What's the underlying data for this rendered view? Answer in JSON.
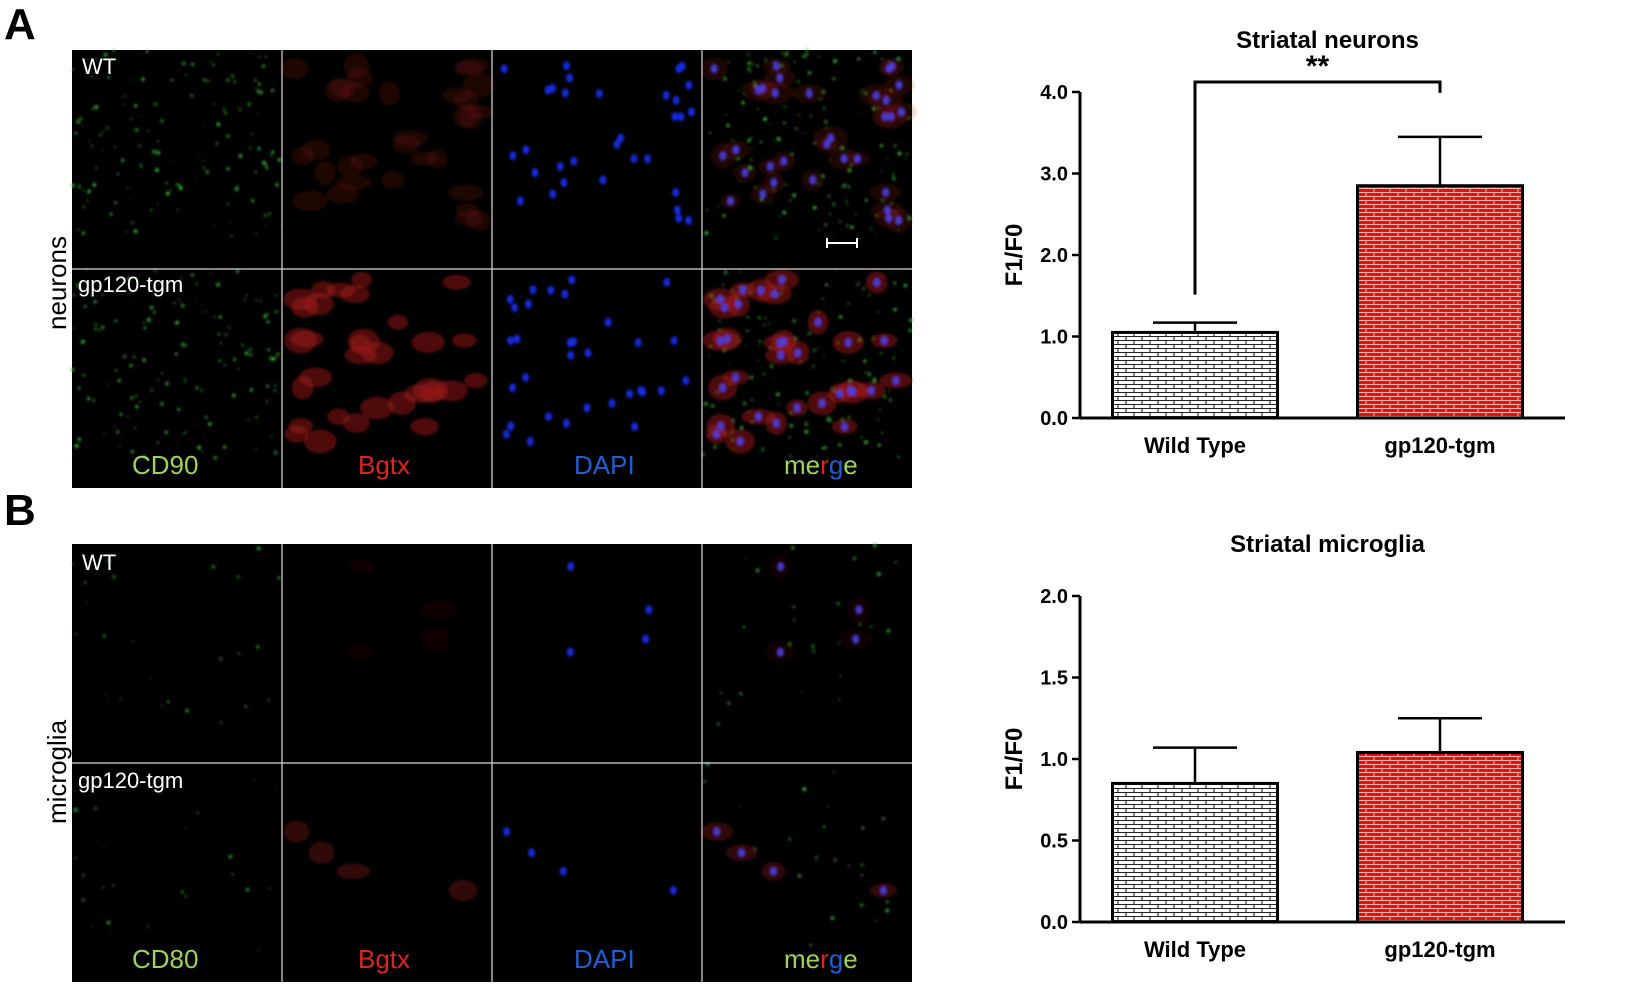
{
  "panels": [
    {
      "letter": "A",
      "row_label": "neurons",
      "row_names": [
        "WT",
        "gp120-tgm"
      ],
      "channels": [
        {
          "name": "CD90",
          "color": "#9bd45a"
        },
        {
          "name": "Bgtx",
          "color": "#e0241b"
        },
        {
          "name": "DAPI",
          "color": "#1f5fd6"
        },
        {
          "name": "merge",
          "color": "merge"
        }
      ]
    },
    {
      "letter": "B",
      "row_label": "microglia",
      "row_names": [
        "WT",
        "gp120-tgm"
      ],
      "channels": [
        {
          "name": "CD80",
          "color": "#9bd45a"
        },
        {
          "name": "Bgtx",
          "color": "#e0241b"
        },
        {
          "name": "DAPI",
          "color": "#1f5fd6"
        },
        {
          "name": "merge",
          "color": "merge"
        }
      ]
    }
  ],
  "merge_letters": [
    {
      "ch": "m",
      "color": "#9bd45a"
    },
    {
      "ch": "e",
      "color": "#9bd45a"
    },
    {
      "ch": "r",
      "color": "#e0241b"
    },
    {
      "ch": "g",
      "color": "#1f5fd6"
    },
    {
      "ch": "e",
      "color": "#9bd45a"
    }
  ],
  "chart_data": [
    {
      "type": "bar",
      "title": "Striatal neurons",
      "categories": [
        "Wild Type",
        "gp120-tgm"
      ],
      "values": [
        1.05,
        2.85
      ],
      "errors": [
        0.12,
        0.6
      ],
      "ylabel": "F1/F0",
      "ylim": [
        0,
        4.0
      ],
      "yticks": [
        "0.0",
        "1.0",
        "2.0",
        "3.0",
        "4.0"
      ],
      "significance": "**",
      "bar_colors": [
        "#ffffff",
        "#e0140e"
      ],
      "bar_patterns": [
        "brick-dark",
        "brick-light"
      ]
    },
    {
      "type": "bar",
      "title": "Striatal microglia",
      "categories": [
        "Wild Type",
        "gp120-tgm"
      ],
      "values": [
        0.85,
        1.04
      ],
      "errors": [
        0.22,
        0.21
      ],
      "ylabel": "F1/F0",
      "ylim": [
        0,
        2.0
      ],
      "yticks": [
        "0.0",
        "0.5",
        "1.0",
        "1.5",
        "2.0"
      ],
      "bar_colors": [
        "#ffffff",
        "#e0140e"
      ],
      "bar_patterns": [
        "brick-dark",
        "brick-light"
      ]
    }
  ]
}
